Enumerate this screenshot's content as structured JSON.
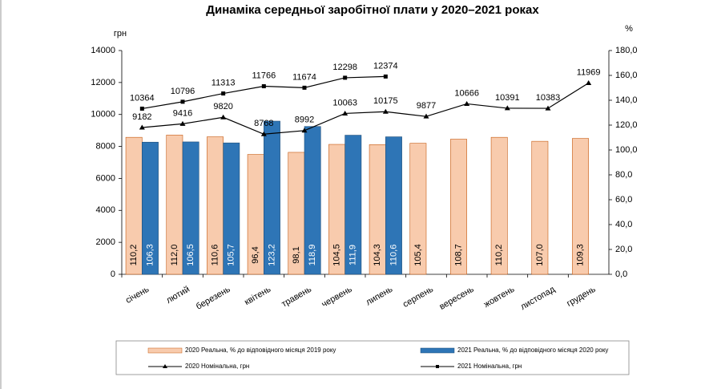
{
  "chart_data": {
    "type": "combo",
    "title": "Динаміка середньої заробітної плати у 2020–2021 роках",
    "y_label": "грн",
    "y2_label": "%",
    "categories": [
      "січень",
      "лютий",
      "березень",
      "квітень",
      "травень",
      "червень",
      "липень",
      "серпень",
      "вересень",
      "жовтень",
      "листопад",
      "грудень"
    ],
    "ylim": [
      0,
      14000
    ],
    "yticks": [
      0,
      2000,
      4000,
      6000,
      8000,
      10000,
      12000,
      14000
    ],
    "y2lim": [
      0,
      180
    ],
    "y2ticks": [
      {
        "value": 0,
        "label": "0,0"
      },
      {
        "value": 20,
        "label": "20,0"
      },
      {
        "value": 40,
        "label": "40,0"
      },
      {
        "value": 60,
        "label": "60,0"
      },
      {
        "value": 80,
        "label": "80,0"
      },
      {
        "value": 100,
        "label": "100,0"
      },
      {
        "value": 120,
        "label": "120,0"
      },
      {
        "value": 140,
        "label": "140,0"
      },
      {
        "value": 160,
        "label": "160,0"
      },
      {
        "value": 180,
        "label": "180,0"
      }
    ],
    "series": [
      {
        "name": "2020 Реальна, % до відповідного  місяця 2019 року",
        "type": "bar",
        "axis": "y2",
        "color": "#f8cbad",
        "values": [
          110.2,
          112.0,
          110.6,
          96.4,
          98.1,
          104.5,
          104.3,
          105.4,
          108.7,
          110.2,
          107.0,
          109.3
        ],
        "value_labels": [
          "110,2",
          "112,0",
          "110,6",
          "96,4",
          "98,1",
          "104,5",
          "104,3",
          "105,4",
          "108,7",
          "110,2",
          "107,0",
          "109,3"
        ]
      },
      {
        "name": "2021 Реальна, % до відповідного  місяця 2020 року",
        "type": "bar",
        "axis": "y2",
        "color": "#2e75b6",
        "values": [
          106.3,
          106.5,
          105.7,
          123.2,
          118.9,
          111.9,
          110.6,
          null,
          null,
          null,
          null,
          null
        ],
        "value_labels": [
          "106,3",
          "106,5",
          "105,7",
          "123,2",
          "118,9",
          "111,9",
          "110,6",
          null,
          null,
          null,
          null,
          null
        ]
      },
      {
        "name": "2020 Номінальна,  грн",
        "type": "line",
        "marker": "triangle",
        "color": "#000000",
        "values": [
          9182,
          9416,
          9820,
          8768,
          8992,
          10063,
          10175,
          9877,
          10666,
          10391,
          10383,
          11969
        ]
      },
      {
        "name": "2021 Номінальна,  грн",
        "type": "line",
        "marker": "square",
        "color": "#000000",
        "values": [
          10364,
          10796,
          11313,
          11766,
          11674,
          12298,
          12374,
          null,
          null,
          null,
          null,
          null
        ]
      }
    ]
  }
}
